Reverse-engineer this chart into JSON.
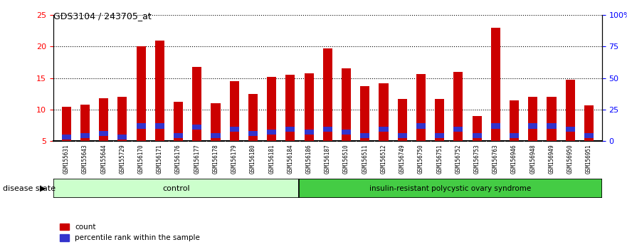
{
  "title": "GDS3104 / 243705_at",
  "categories": [
    "GSM155631",
    "GSM155643",
    "GSM155644",
    "GSM155729",
    "GSM156170",
    "GSM156171",
    "GSM156176",
    "GSM156177",
    "GSM156178",
    "GSM156179",
    "GSM156180",
    "GSM156181",
    "GSM156184",
    "GSM156186",
    "GSM156187",
    "GSM156510",
    "GSM156511",
    "GSM156512",
    "GSM156749",
    "GSM156750",
    "GSM156751",
    "GSM156752",
    "GSM156753",
    "GSM156763",
    "GSM156946",
    "GSM156948",
    "GSM156949",
    "GSM156950",
    "GSM156951"
  ],
  "count_values": [
    10.5,
    10.8,
    11.8,
    12.0,
    20.0,
    21.0,
    11.2,
    16.8,
    11.0,
    14.5,
    12.5,
    15.2,
    15.5,
    15.8,
    19.7,
    16.5,
    13.7,
    14.2,
    11.7,
    15.7,
    11.7,
    16.0,
    9.0,
    23.0,
    11.5,
    12.0,
    12.0,
    14.8,
    10.7
  ],
  "percentile_bottom": [
    5.2,
    5.5,
    5.8,
    5.2,
    7.0,
    7.0,
    5.5,
    6.8,
    5.5,
    6.5,
    5.8,
    6.0,
    6.5,
    6.0,
    6.5,
    6.0,
    5.5,
    6.5,
    5.5,
    7.0,
    5.5,
    6.5,
    5.5,
    7.0,
    5.5,
    7.0,
    7.0,
    6.5,
    5.5
  ],
  "percentile_height": [
    0.8,
    0.8,
    0.8,
    0.8,
    0.8,
    0.8,
    0.8,
    0.8,
    0.8,
    0.8,
    0.8,
    0.8,
    0.8,
    0.8,
    0.8,
    0.8,
    0.8,
    0.8,
    0.8,
    0.8,
    0.8,
    0.8,
    0.8,
    0.8,
    0.8,
    0.8,
    0.8,
    0.8,
    0.8
  ],
  "control_count": 13,
  "disease_count": 16,
  "ylim_left": [
    5,
    25
  ],
  "ylim_right": [
    0,
    100
  ],
  "yticks_left": [
    5,
    10,
    15,
    20,
    25
  ],
  "yticks_right": [
    0,
    25,
    50,
    75,
    100
  ],
  "ytick_right_labels": [
    "0",
    "25",
    "50",
    "75",
    "100%"
  ],
  "bar_color": "#cc0000",
  "percentile_color": "#3333cc",
  "control_color": "#ccffcc",
  "disease_color": "#44cc44",
  "bg_color": "#cccccc",
  "grid_color": "#000000",
  "control_label": "control",
  "disease_label": "insulin-resistant polycystic ovary syndrome",
  "legend_count": "count",
  "legend_percentile": "percentile rank within the sample",
  "disease_state_label": "disease state",
  "bar_width": 0.5
}
